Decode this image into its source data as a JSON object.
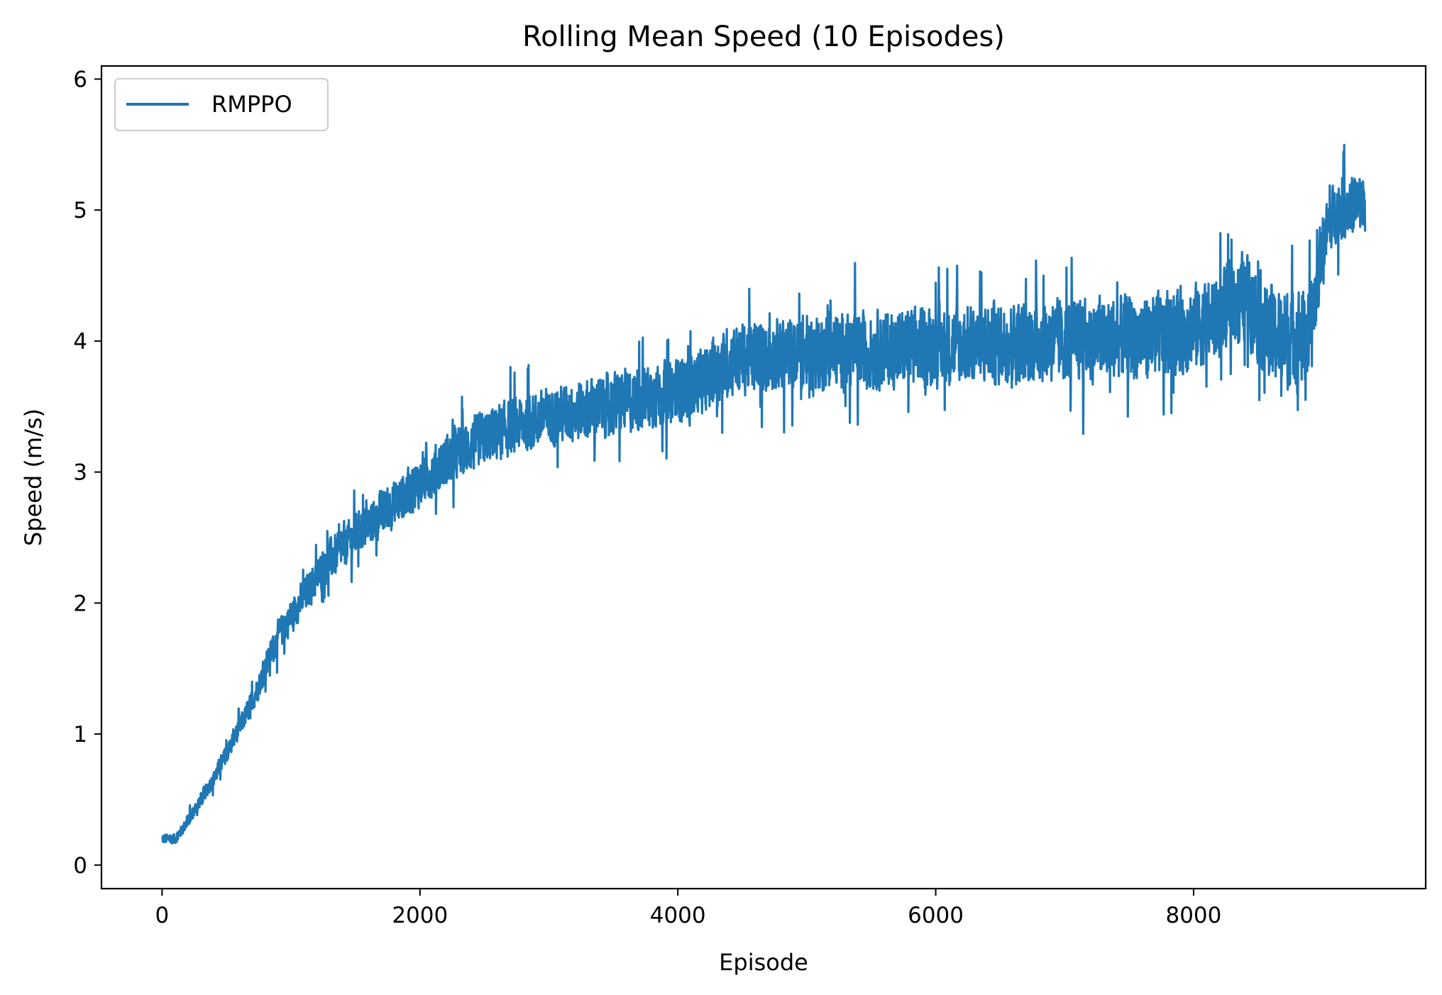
{
  "chart_data": {
    "type": "line",
    "title": "Rolling Mean Speed (10 Episodes)",
    "xlabel": "Episode",
    "ylabel": "Speed (m/s)",
    "xlim": [
      -470,
      9800
    ],
    "ylim": [
      -0.18,
      6.1
    ],
    "xticks": [
      0,
      2000,
      4000,
      6000,
      8000
    ],
    "yticks": [
      0,
      1,
      2,
      3,
      4,
      5,
      6
    ],
    "xtick_labels": [
      "0",
      "2000",
      "4000",
      "6000",
      "8000"
    ],
    "ytick_labels": [
      "0",
      "1",
      "2",
      "3",
      "4",
      "5",
      "6"
    ],
    "grid": false,
    "legend_position": "upper-left",
    "series": [
      {
        "name": "RMPPO",
        "color": "#1f77b4",
        "x_start": 0,
        "x_step": 100,
        "trend": [
          0.2,
          0.2,
          0.33,
          0.5,
          0.66,
          0.85,
          1.05,
          1.25,
          1.5,
          1.75,
          1.9,
          2.05,
          2.2,
          2.33,
          2.42,
          2.52,
          2.6,
          2.68,
          2.76,
          2.84,
          2.92,
          3.0,
          3.08,
          3.15,
          3.2,
          3.26,
          3.3,
          3.34,
          3.37,
          3.4,
          3.42,
          3.44,
          3.46,
          3.48,
          3.5,
          3.52,
          3.54,
          3.56,
          3.58,
          3.6,
          3.63,
          3.66,
          3.7,
          3.76,
          3.85,
          3.87,
          3.88,
          3.89,
          3.9,
          3.9,
          3.91,
          3.91,
          3.92,
          3.92,
          3.93,
          3.93,
          3.94,
          3.94,
          3.95,
          3.95,
          3.96,
          3.96,
          3.97,
          3.97,
          3.98,
          3.98,
          3.99,
          3.99,
          4.0,
          4.0,
          4.0,
          4.01,
          4.01,
          4.02,
          4.02,
          4.03,
          4.03,
          4.04,
          4.05,
          4.07,
          4.1,
          4.15,
          4.2,
          4.3,
          4.35,
          4.2,
          4.05,
          4.0,
          4.05,
          4.0,
          4.75,
          5.0,
          5.05,
          5.05
        ],
        "noise": [
          0.05,
          0.05,
          0.06,
          0.07,
          0.08,
          0.09,
          0.1,
          0.11,
          0.13,
          0.15,
          0.16,
          0.17,
          0.19,
          0.2,
          0.2,
          0.2,
          0.21,
          0.22,
          0.22,
          0.23,
          0.23,
          0.24,
          0.25,
          0.25,
          0.26,
          0.26,
          0.27,
          0.27,
          0.27,
          0.28,
          0.28,
          0.28,
          0.29,
          0.29,
          0.29,
          0.3,
          0.3,
          0.3,
          0.3,
          0.3,
          0.3,
          0.3,
          0.3,
          0.32,
          0.34,
          0.34,
          0.34,
          0.35,
          0.35,
          0.35,
          0.36,
          0.36,
          0.36,
          0.36,
          0.37,
          0.37,
          0.37,
          0.37,
          0.38,
          0.38,
          0.38,
          0.38,
          0.38,
          0.38,
          0.39,
          0.39,
          0.39,
          0.39,
          0.4,
          0.4,
          0.4,
          0.4,
          0.4,
          0.4,
          0.4,
          0.4,
          0.4,
          0.4,
          0.4,
          0.4,
          0.4,
          0.4,
          0.4,
          0.4,
          0.42,
          0.44,
          0.46,
          0.48,
          0.46,
          0.45,
          0.3,
          0.3,
          0.3,
          0.3
        ],
        "x_end": 9330,
        "min": 0.11,
        "max": 5.79
      }
    ]
  }
}
